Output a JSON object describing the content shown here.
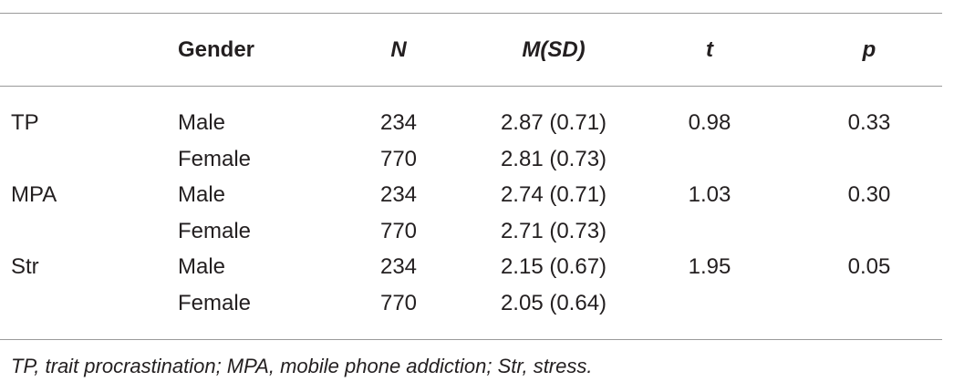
{
  "table": {
    "header": {
      "gender": "Gender",
      "n": "N",
      "msd": "M(SD)",
      "t": "t",
      "p": "p"
    },
    "rows": [
      {
        "variable": "TP",
        "gender": "Male",
        "n": "234",
        "msd": "2.87 (0.71)",
        "t": "0.98",
        "p": "0.33"
      },
      {
        "gender": "Female",
        "n": "770",
        "msd": "2.81 (0.73)"
      },
      {
        "variable": "MPA",
        "gender": "Male",
        "n": "234",
        "msd": "2.74 (0.71)",
        "t": "1.03",
        "p": "0.30"
      },
      {
        "gender": "Female",
        "n": "770",
        "msd": "2.71 (0.73)"
      },
      {
        "variable": "Str",
        "gender": "Male",
        "n": "234",
        "msd": "2.15 (0.67)",
        "t": "1.95",
        "p": "0.05"
      },
      {
        "gender": "Female",
        "n": "770",
        "msd": "2.05 (0.64)"
      }
    ],
    "footnote": "TP, trait procrastination; MPA, mobile phone addiction; Str, stress."
  }
}
